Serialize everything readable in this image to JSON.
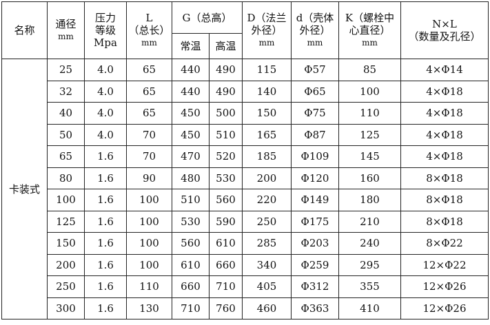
{
  "headers": {
    "name": "名称",
    "dn": "通径",
    "dn_unit": "mm",
    "pressure": "压力等级",
    "pressure_unit": "Mpa",
    "L": "L",
    "L_sub": "（总长）",
    "L_unit": "mm",
    "G": "G（总高）",
    "G_normal": "常温",
    "G_high": "高温",
    "D": "D（法兰外径）",
    "D_unit": "mm",
    "d": "d（壳体外径）",
    "d_unit": "mm",
    "K": "K（螺栓中心直径）",
    "K_unit": "mm",
    "NL": "N×L",
    "NL_sub": "（数量及孔径）"
  },
  "group_name": "卡装式",
  "rows": [
    [
      "25",
      "4.0",
      "65",
      "440",
      "490",
      "115",
      "Φ57",
      "85",
      "4×Φ14"
    ],
    [
      "32",
      "4.0",
      "65",
      "440",
      "490",
      "140",
      "Φ65",
      "100",
      "4×Φ18"
    ],
    [
      "40",
      "4.0",
      "65",
      "450",
      "500",
      "150",
      "Φ75",
      "110",
      "4×Φ18"
    ],
    [
      "50",
      "4.0",
      "70",
      "450",
      "510",
      "165",
      "Φ87",
      "125",
      "4×Φ18"
    ],
    [
      "65",
      "1.6",
      "70",
      "470",
      "520",
      "185",
      "Φ109",
      "145",
      "4×Φ18"
    ],
    [
      "80",
      "1.6",
      "90",
      "480",
      "530",
      "200",
      "Φ120",
      "160",
      "8×Φ18"
    ],
    [
      "100",
      "1.6",
      "100",
      "510",
      "560",
      "220",
      "Φ149",
      "180",
      "8×Φ18"
    ],
    [
      "125",
      "1.6",
      "100",
      "530",
      "590",
      "250",
      "Φ175",
      "210",
      "8×Φ18"
    ],
    [
      "150",
      "1.6",
      "100",
      "560",
      "610",
      "285",
      "Φ203",
      "240",
      "8×Φ22"
    ],
    [
      "200",
      "1.6",
      "100",
      "610",
      "660",
      "340",
      "Φ259",
      "295",
      "12×Φ22"
    ],
    [
      "250",
      "1.6",
      "110",
      "660",
      "710",
      "405",
      "Φ312",
      "355",
      "12×Φ26"
    ],
    [
      "300",
      "1.6",
      "130",
      "710",
      "760",
      "460",
      "Φ363",
      "410",
      "12×Φ26"
    ]
  ]
}
